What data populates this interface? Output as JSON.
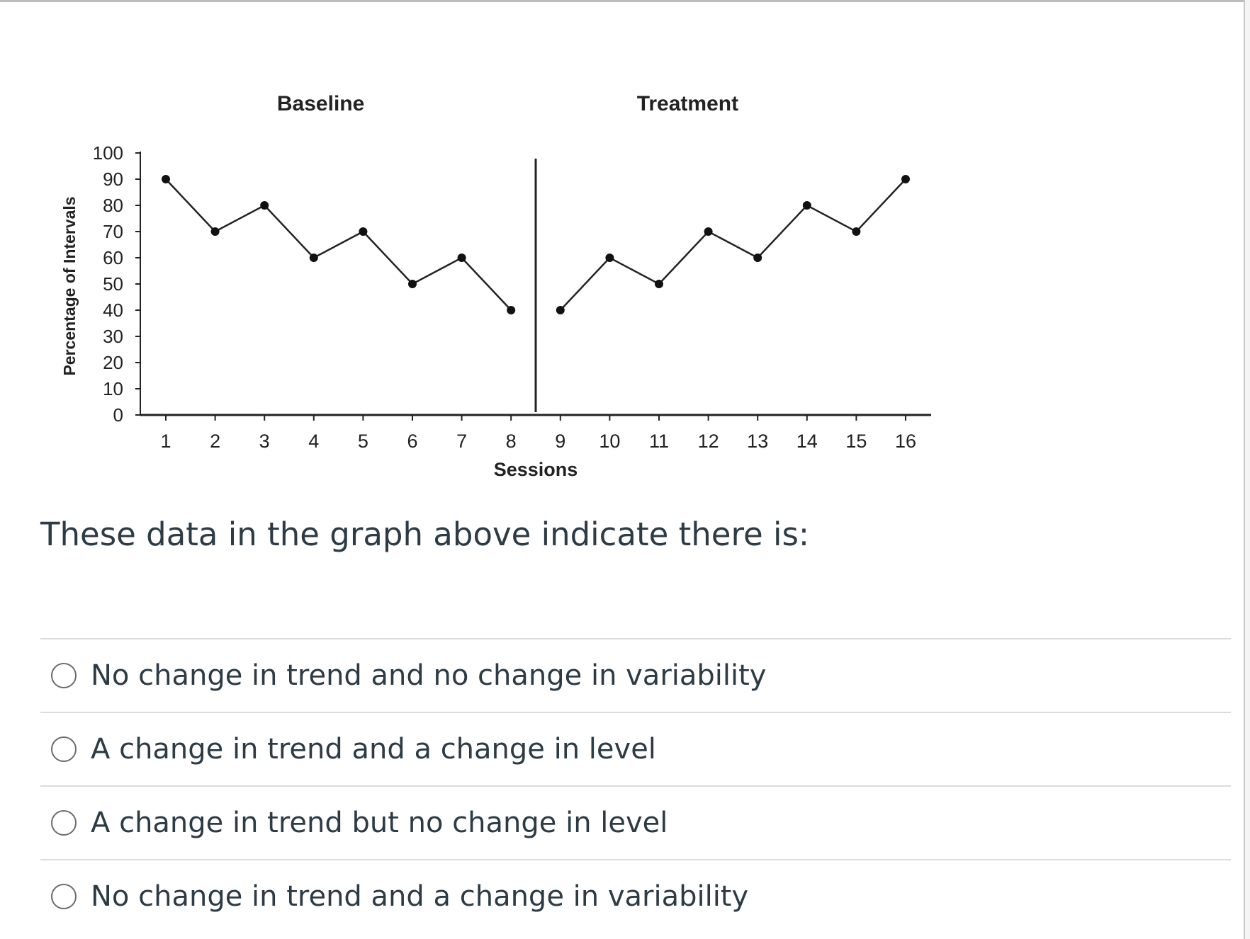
{
  "chart_data": {
    "type": "line",
    "phase_labels": [
      "Baseline",
      "Treatment"
    ],
    "phase_change_after_session": 8,
    "xlabel": "Sessions",
    "ylabel": "Percentage of Intervals",
    "x": [
      1,
      2,
      3,
      4,
      5,
      6,
      7,
      8,
      9,
      10,
      11,
      12,
      13,
      14,
      15,
      16
    ],
    "y_ticks": [
      0,
      10,
      20,
      30,
      40,
      50,
      60,
      70,
      80,
      90,
      100
    ],
    "ylim": [
      0,
      100
    ],
    "grid": false,
    "series": [
      {
        "phase": "Baseline",
        "x": [
          1,
          2,
          3,
          4,
          5,
          6,
          7,
          8
        ],
        "values": [
          90,
          70,
          80,
          60,
          70,
          50,
          60,
          40
        ]
      },
      {
        "phase": "Treatment",
        "x": [
          9,
          10,
          11,
          12,
          13,
          14,
          15,
          16
        ],
        "values": [
          40,
          60,
          50,
          70,
          60,
          80,
          70,
          90
        ]
      }
    ],
    "line_color": "#222222",
    "marker_color": "#111111"
  },
  "question": {
    "text": "These data in the graph above indicate there is:"
  },
  "answers": [
    {
      "label": "No change in trend and no change in variability"
    },
    {
      "label": "A change in trend and a change in level"
    },
    {
      "label": "A change in trend but no change in level"
    },
    {
      "label": "No change in trend and a change in variability"
    }
  ]
}
